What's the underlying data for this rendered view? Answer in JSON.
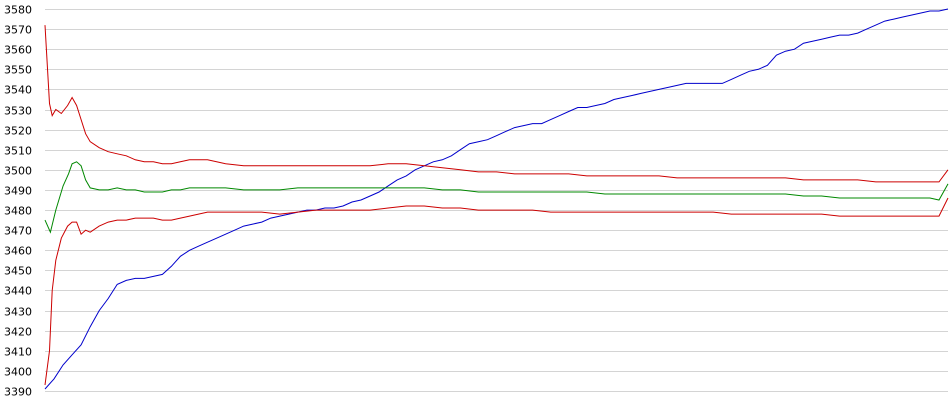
{
  "chart_data": {
    "type": "line",
    "title": "",
    "xlabel": "",
    "ylabel": "",
    "ylim": [
      3390,
      3580
    ],
    "grid": true,
    "legend": "none",
    "y_ticks": [
      3390,
      3400,
      3410,
      3420,
      3430,
      3440,
      3450,
      3460,
      3470,
      3480,
      3490,
      3500,
      3510,
      3520,
      3530,
      3540,
      3550,
      3560,
      3570,
      3580
    ],
    "x_ticks": [],
    "x_range": [
      0,
      100
    ],
    "series": [
      {
        "color": "#0000cc",
        "points": [
          [
            0,
            3391
          ],
          [
            1,
            3396
          ],
          [
            2,
            3403
          ],
          [
            3,
            3408
          ],
          [
            4,
            3413
          ],
          [
            5,
            3422
          ],
          [
            6,
            3430
          ],
          [
            7,
            3436
          ],
          [
            8,
            3443
          ],
          [
            9,
            3445
          ],
          [
            10,
            3446
          ],
          [
            11,
            3446
          ],
          [
            12,
            3447
          ],
          [
            13,
            3448
          ],
          [
            14,
            3452
          ],
          [
            15,
            3457
          ],
          [
            16,
            3460
          ],
          [
            17,
            3462
          ],
          [
            18,
            3464
          ],
          [
            19,
            3466
          ],
          [
            20,
            3468
          ],
          [
            21,
            3470
          ],
          [
            22,
            3472
          ],
          [
            23,
            3473
          ],
          [
            24,
            3474
          ],
          [
            25,
            3476
          ],
          [
            26,
            3477
          ],
          [
            27,
            3478
          ],
          [
            28,
            3479
          ],
          [
            29,
            3480
          ],
          [
            30,
            3480
          ],
          [
            31,
            3481
          ],
          [
            32,
            3481
          ],
          [
            33,
            3482
          ],
          [
            34,
            3484
          ],
          [
            35,
            3485
          ],
          [
            36,
            3487
          ],
          [
            37,
            3489
          ],
          [
            38,
            3492
          ],
          [
            39,
            3495
          ],
          [
            40,
            3497
          ],
          [
            41,
            3500
          ],
          [
            42,
            3502
          ],
          [
            43,
            3504
          ],
          [
            44,
            3505
          ],
          [
            45,
            3507
          ],
          [
            46,
            3510
          ],
          [
            47,
            3513
          ],
          [
            48,
            3514
          ],
          [
            49,
            3515
          ],
          [
            50,
            3517
          ],
          [
            51,
            3519
          ],
          [
            52,
            3521
          ],
          [
            53,
            3522
          ],
          [
            54,
            3523
          ],
          [
            55,
            3523
          ],
          [
            56,
            3525
          ],
          [
            57,
            3527
          ],
          [
            58,
            3529
          ],
          [
            59,
            3531
          ],
          [
            60,
            3531
          ],
          [
            61,
            3532
          ],
          [
            62,
            3533
          ],
          [
            63,
            3535
          ],
          [
            64,
            3536
          ],
          [
            65,
            3537
          ],
          [
            66,
            3538
          ],
          [
            67,
            3539
          ],
          [
            68,
            3540
          ],
          [
            69,
            3541
          ],
          [
            70,
            3542
          ],
          [
            71,
            3543
          ],
          [
            72,
            3543
          ],
          [
            73,
            3543
          ],
          [
            74,
            3543
          ],
          [
            75,
            3543
          ],
          [
            76,
            3545
          ],
          [
            77,
            3547
          ],
          [
            78,
            3549
          ],
          [
            79,
            3550
          ],
          [
            80,
            3552
          ],
          [
            81,
            3557
          ],
          [
            82,
            3559
          ],
          [
            83,
            3560
          ],
          [
            84,
            3563
          ],
          [
            85,
            3564
          ],
          [
            86,
            3565
          ],
          [
            87,
            3566
          ],
          [
            88,
            3567
          ],
          [
            89,
            3567
          ],
          [
            90,
            3568
          ],
          [
            91,
            3570
          ],
          [
            92,
            3572
          ],
          [
            93,
            3574
          ],
          [
            94,
            3575
          ],
          [
            95,
            3576
          ],
          [
            96,
            3577
          ],
          [
            97,
            3578
          ],
          [
            98,
            3579
          ],
          [
            99,
            3579
          ],
          [
            100,
            3580
          ]
        ]
      },
      {
        "color": "#cc0000",
        "points": [
          [
            0,
            3572
          ],
          [
            0.5,
            3533
          ],
          [
            0.8,
            3527
          ],
          [
            1.2,
            3530
          ],
          [
            1.8,
            3528
          ],
          [
            2.5,
            3532
          ],
          [
            3,
            3536
          ],
          [
            3.5,
            3532
          ],
          [
            4,
            3525
          ],
          [
            4.5,
            3518
          ],
          [
            5,
            3514
          ],
          [
            6,
            3511
          ],
          [
            7,
            3509
          ],
          [
            8,
            3508
          ],
          [
            9,
            3507
          ],
          [
            10,
            3505
          ],
          [
            11,
            3504
          ],
          [
            12,
            3504
          ],
          [
            13,
            3503
          ],
          [
            14,
            3503
          ],
          [
            15,
            3504
          ],
          [
            16,
            3505
          ],
          [
            17,
            3505
          ],
          [
            18,
            3505
          ],
          [
            19,
            3504
          ],
          [
            20,
            3503
          ],
          [
            22,
            3502
          ],
          [
            24,
            3502
          ],
          [
            26,
            3502
          ],
          [
            28,
            3502
          ],
          [
            30,
            3502
          ],
          [
            32,
            3502
          ],
          [
            34,
            3502
          ],
          [
            36,
            3502
          ],
          [
            38,
            3503
          ],
          [
            40,
            3503
          ],
          [
            42,
            3502
          ],
          [
            44,
            3501
          ],
          [
            46,
            3500
          ],
          [
            48,
            3499
          ],
          [
            50,
            3499
          ],
          [
            52,
            3498
          ],
          [
            54,
            3498
          ],
          [
            56,
            3498
          ],
          [
            58,
            3498
          ],
          [
            60,
            3497
          ],
          [
            62,
            3497
          ],
          [
            64,
            3497
          ],
          [
            66,
            3497
          ],
          [
            68,
            3497
          ],
          [
            70,
            3496
          ],
          [
            72,
            3496
          ],
          [
            74,
            3496
          ],
          [
            76,
            3496
          ],
          [
            78,
            3496
          ],
          [
            80,
            3496
          ],
          [
            82,
            3496
          ],
          [
            84,
            3495
          ],
          [
            86,
            3495
          ],
          [
            88,
            3495
          ],
          [
            90,
            3495
          ],
          [
            92,
            3494
          ],
          [
            94,
            3494
          ],
          [
            96,
            3494
          ],
          [
            98,
            3494
          ],
          [
            99,
            3494
          ],
          [
            100,
            3500
          ]
        ]
      },
      {
        "color": "#008800",
        "points": [
          [
            0,
            3475
          ],
          [
            0.6,
            3469
          ],
          [
            1.2,
            3480
          ],
          [
            2,
            3492
          ],
          [
            2.6,
            3498
          ],
          [
            3,
            3503
          ],
          [
            3.5,
            3504
          ],
          [
            4,
            3502
          ],
          [
            4.5,
            3495
          ],
          [
            5,
            3491
          ],
          [
            6,
            3490
          ],
          [
            7,
            3490
          ],
          [
            8,
            3491
          ],
          [
            9,
            3490
          ],
          [
            10,
            3490
          ],
          [
            11,
            3489
          ],
          [
            12,
            3489
          ],
          [
            13,
            3489
          ],
          [
            14,
            3490
          ],
          [
            15,
            3490
          ],
          [
            16,
            3491
          ],
          [
            17,
            3491
          ],
          [
            18,
            3491
          ],
          [
            20,
            3491
          ],
          [
            22,
            3490
          ],
          [
            24,
            3490
          ],
          [
            26,
            3490
          ],
          [
            28,
            3491
          ],
          [
            30,
            3491
          ],
          [
            32,
            3491
          ],
          [
            34,
            3491
          ],
          [
            36,
            3491
          ],
          [
            38,
            3491
          ],
          [
            40,
            3491
          ],
          [
            42,
            3491
          ],
          [
            44,
            3490
          ],
          [
            46,
            3490
          ],
          [
            48,
            3489
          ],
          [
            50,
            3489
          ],
          [
            52,
            3489
          ],
          [
            54,
            3489
          ],
          [
            56,
            3489
          ],
          [
            58,
            3489
          ],
          [
            60,
            3489
          ],
          [
            62,
            3488
          ],
          [
            64,
            3488
          ],
          [
            66,
            3488
          ],
          [
            68,
            3488
          ],
          [
            70,
            3488
          ],
          [
            72,
            3488
          ],
          [
            74,
            3488
          ],
          [
            76,
            3488
          ],
          [
            78,
            3488
          ],
          [
            80,
            3488
          ],
          [
            82,
            3488
          ],
          [
            84,
            3487
          ],
          [
            86,
            3487
          ],
          [
            88,
            3486
          ],
          [
            90,
            3486
          ],
          [
            92,
            3486
          ],
          [
            94,
            3486
          ],
          [
            96,
            3486
          ],
          [
            98,
            3486
          ],
          [
            99,
            3485
          ],
          [
            100,
            3493
          ]
        ]
      },
      {
        "color": "#cc0000",
        "points": [
          [
            0,
            3393
          ],
          [
            0.5,
            3410
          ],
          [
            0.8,
            3440
          ],
          [
            1.2,
            3455
          ],
          [
            1.8,
            3466
          ],
          [
            2.5,
            3472
          ],
          [
            3,
            3474
          ],
          [
            3.5,
            3474
          ],
          [
            4,
            3468
          ],
          [
            4.5,
            3470
          ],
          [
            5,
            3469
          ],
          [
            6,
            3472
          ],
          [
            7,
            3474
          ],
          [
            8,
            3475
          ],
          [
            9,
            3475
          ],
          [
            10,
            3476
          ],
          [
            11,
            3476
          ],
          [
            12,
            3476
          ],
          [
            13,
            3475
          ],
          [
            14,
            3475
          ],
          [
            15,
            3476
          ],
          [
            16,
            3477
          ],
          [
            17,
            3478
          ],
          [
            18,
            3479
          ],
          [
            20,
            3479
          ],
          [
            22,
            3479
          ],
          [
            24,
            3479
          ],
          [
            26,
            3478
          ],
          [
            28,
            3479
          ],
          [
            30,
            3480
          ],
          [
            32,
            3480
          ],
          [
            34,
            3480
          ],
          [
            36,
            3480
          ],
          [
            38,
            3481
          ],
          [
            40,
            3482
          ],
          [
            42,
            3482
          ],
          [
            44,
            3481
          ],
          [
            46,
            3481
          ],
          [
            48,
            3480
          ],
          [
            50,
            3480
          ],
          [
            52,
            3480
          ],
          [
            54,
            3480
          ],
          [
            56,
            3479
          ],
          [
            58,
            3479
          ],
          [
            60,
            3479
          ],
          [
            62,
            3479
          ],
          [
            64,
            3479
          ],
          [
            66,
            3479
          ],
          [
            68,
            3479
          ],
          [
            70,
            3479
          ],
          [
            72,
            3479
          ],
          [
            74,
            3479
          ],
          [
            76,
            3478
          ],
          [
            78,
            3478
          ],
          [
            80,
            3478
          ],
          [
            82,
            3478
          ],
          [
            84,
            3478
          ],
          [
            86,
            3478
          ],
          [
            88,
            3477
          ],
          [
            90,
            3477
          ],
          [
            92,
            3477
          ],
          [
            94,
            3477
          ],
          [
            96,
            3477
          ],
          [
            98,
            3477
          ],
          [
            99,
            3477
          ],
          [
            100,
            3486
          ]
        ]
      }
    ]
  }
}
